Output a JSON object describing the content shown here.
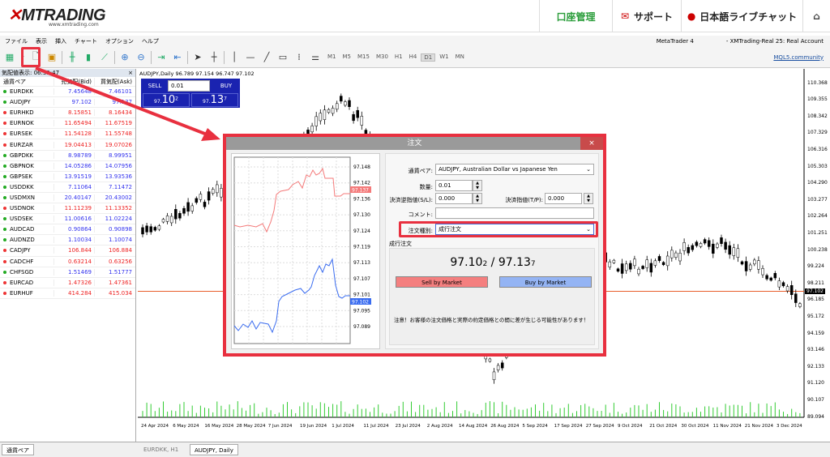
{
  "header": {
    "logo": "XMTRADING",
    "logo_sub": "www.xmtrading.com",
    "nav": [
      {
        "label": "口座管理"
      },
      {
        "label": "サポート"
      },
      {
        "label": "日本語ライブチャット"
      }
    ],
    "home_icon": "home-icon"
  },
  "menu": {
    "items": [
      "ファイル",
      "表示",
      "挿入",
      "チャート",
      "オプション",
      "ヘルプ"
    ],
    "app": "MetaTrader 4",
    "account": "- XMTrading-Real 25: Real Account"
  },
  "toolbar": {
    "timeframes": [
      "M1",
      "M5",
      "M15",
      "M30",
      "H1",
      "H4",
      "D1",
      "W1",
      "MN"
    ],
    "active": "D1",
    "mql5": "MQL5.community"
  },
  "market_watch": {
    "title": "気配値表示: 06:39:47",
    "headers": [
      "通貨ペア",
      "売気配(Bid)",
      "買気配(Ask)"
    ],
    "rows": [
      {
        "symbol": "EURDKK",
        "bid": "7.45648",
        "ask": "7.46101",
        "up": true
      },
      {
        "symbol": "AUDJPY",
        "bid": "97.102",
        "ask": "97.137",
        "up": true
      },
      {
        "symbol": "EURHKD",
        "bid": "8.15851",
        "ask": "8.16434",
        "up": false
      },
      {
        "symbol": "EURNOK",
        "bid": "11.65494",
        "ask": "11.67519",
        "up": false
      },
      {
        "symbol": "EURSEK",
        "bid": "11.54128",
        "ask": "11.55748",
        "up": false
      },
      {
        "symbol": "EURZAR",
        "bid": "19.04413",
        "ask": "19.07026",
        "up": false
      },
      {
        "symbol": "GBPDKK",
        "bid": "8.98789",
        "ask": "8.99951",
        "up": true
      },
      {
        "symbol": "GBPNOK",
        "bid": "14.05286",
        "ask": "14.07956",
        "up": true
      },
      {
        "symbol": "GBPSEK",
        "bid": "13.91519",
        "ask": "13.93536",
        "up": true
      },
      {
        "symbol": "USDDKK",
        "bid": "7.11064",
        "ask": "7.11472",
        "up": true
      },
      {
        "symbol": "USDMXN",
        "bid": "20.40147",
        "ask": "20.43002",
        "up": true
      },
      {
        "symbol": "USDNOK",
        "bid": "11.11239",
        "ask": "11.13352",
        "up": false
      },
      {
        "symbol": "USDSEK",
        "bid": "11.00616",
        "ask": "11.02224",
        "up": true
      },
      {
        "symbol": "AUDCAD",
        "bid": "0.90864",
        "ask": "0.90898",
        "up": true
      },
      {
        "symbol": "AUDNZD",
        "bid": "1.10034",
        "ask": "1.10074",
        "up": true
      },
      {
        "symbol": "CADJPY",
        "bid": "106.844",
        "ask": "106.884",
        "up": false
      },
      {
        "symbol": "CADCHF",
        "bid": "0.63214",
        "ask": "0.63256",
        "up": false
      },
      {
        "symbol": "CHFSGD",
        "bid": "1.51469",
        "ask": "1.51777",
        "up": true
      },
      {
        "symbol": "EURCAD",
        "bid": "1.47326",
        "ask": "1.47361",
        "up": false
      },
      {
        "symbol": "EURHUF",
        "bid": "414.284",
        "ask": "415.034",
        "up": false
      }
    ],
    "tab": "通貨ペア"
  },
  "chart": {
    "info": "AUDJPY,Daily  96.789 97.154 96.747 97.102",
    "sell": "SELL",
    "buy": "BUY",
    "lots": "0.01",
    "bid_big": "10",
    "bid_sup": "2",
    "ask_big": "13",
    "ask_sup": "7",
    "prefix": "97.",
    "price_labels": [
      "110.368",
      "109.355",
      "108.342",
      "107.329",
      "106.316",
      "105.303",
      "104.290",
      "103.277",
      "102.264",
      "101.251",
      "100.238",
      "99.224",
      "98.211",
      "96.185",
      "95.172",
      "94.159",
      "93.146",
      "92.133",
      "91.120",
      "90.107",
      "89.094"
    ],
    "current": "97.102",
    "dates": [
      "24 Apr 2024",
      "6 May 2024",
      "16 May 2024",
      "28 May 2024",
      "7 Jun 2024",
      "19 Jun 2024",
      "1 Jul 2024",
      "11 Jul 2024",
      "23 Jul 2024",
      "2 Aug 2024",
      "14 Aug 2024",
      "26 Aug 2024",
      "5 Sep 2024",
      "17 Sep 2024",
      "27 Sep 2024",
      "9 Oct 2024",
      "21 Oct 2024",
      "30 Oct 2024",
      "11 Nov 2024",
      "21 Nov 2024",
      "3 Dec 2024"
    ],
    "up_color": "#000000",
    "bid_line_color": "#e8602c"
  },
  "order": {
    "title": "注文",
    "close": "×",
    "symbol_label": "通貨ペア:",
    "symbol": "AUDJPY, Australian Dollar vs Japanese Yen",
    "volume_label": "数量:",
    "volume": "0.01",
    "sl_label": "決済逆指値(S/L):",
    "sl": "0.000",
    "tp_label": "決済指値(T/P):",
    "tp": "0.000",
    "comment_label": "コメント:",
    "comment": "",
    "type_label": "注文種別:",
    "type": "成行注文",
    "section": "成行注文",
    "bid": "97.10",
    "bid_last": "2",
    "sep": " / ",
    "ask": "97.13",
    "ask_last": "7",
    "sell_btn": "Sell by Market",
    "buy_btn": "Buy by Market",
    "warning": "注意！お客様の注文価格と実際の約定価格との間に差が生じる可能性があります！",
    "mini_axis": [
      "97.148",
      "97.142",
      "97.136",
      "97.130",
      "97.124",
      "97.119",
      "97.113",
      "97.107",
      "97.101",
      "97.095",
      "97.089"
    ],
    "ask_tag": "97.137",
    "bid_tag": "97.102",
    "ask_color": "#f47a7a",
    "bid_color": "#3a6cf0"
  },
  "bottom_tabs": [
    "EURDKK, H1",
    "AUDJPY, Daily"
  ],
  "highlight_color": "#e8303f"
}
